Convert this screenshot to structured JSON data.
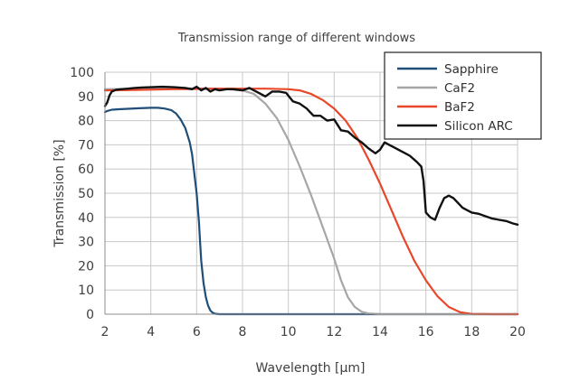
{
  "chart_data": {
    "type": "line",
    "title": "Transmission range of different windows",
    "xlabel": "Wavelength [µm]",
    "ylabel": "Transmission [%]",
    "xlim": [
      2,
      20
    ],
    "ylim": [
      0,
      100
    ],
    "xticks": [
      2,
      4,
      6,
      8,
      10,
      12,
      14,
      16,
      18,
      20
    ],
    "yticks": [
      0,
      10,
      20,
      30,
      40,
      50,
      60,
      70,
      80,
      90,
      100
    ],
    "grid": true,
    "legend_position": "top-right",
    "series": [
      {
        "name": "Sapphire",
        "color": "#1f4e79",
        "x": [
          2.0,
          2.1,
          2.3,
          2.6,
          3.0,
          3.5,
          4.0,
          4.3,
          4.6,
          4.9,
          5.1,
          5.3,
          5.5,
          5.7,
          5.8,
          5.9,
          6.0,
          6.1,
          6.15,
          6.2,
          6.3,
          6.4,
          6.5,
          6.6,
          6.7,
          6.8,
          7.0,
          7.5,
          8.0,
          10.0,
          12.0,
          14.0,
          16.0,
          18.0,
          20.0
        ],
        "y": [
          83.5,
          84.0,
          84.5,
          84.7,
          84.9,
          85.1,
          85.3,
          85.3,
          85.0,
          84.3,
          83.0,
          80.5,
          77.0,
          71.0,
          66.0,
          58.0,
          50.0,
          38.0,
          30.0,
          22.0,
          13.0,
          7.0,
          3.5,
          1.5,
          0.6,
          0.2,
          0.0,
          0.0,
          0.0,
          0.0,
          0.0,
          0.0,
          0.0,
          0.0,
          0.0
        ]
      },
      {
        "name": "CaF2",
        "color": "#a6a6a6",
        "x": [
          2.0,
          3.0,
          4.0,
          5.0,
          6.0,
          7.0,
          8.0,
          8.5,
          9.0,
          9.5,
          10.0,
          10.5,
          11.0,
          11.5,
          12.0,
          12.3,
          12.6,
          12.9,
          13.2,
          13.5,
          14.0,
          15.0,
          16.0,
          18.0,
          20.0
        ],
        "y": [
          93.0,
          93.1,
          93.2,
          93.3,
          93.3,
          93.2,
          92.5,
          91.0,
          87.0,
          81.0,
          72.0,
          61.0,
          49.0,
          36.0,
          23.0,
          14.0,
          7.0,
          3.0,
          1.0,
          0.3,
          0.0,
          0.0,
          0.0,
          0.0,
          0.0
        ]
      },
      {
        "name": "BaF2",
        "color": "#e8472a",
        "x": [
          2.0,
          3.0,
          4.0,
          5.0,
          6.0,
          7.0,
          8.0,
          9.0,
          10.0,
          10.5,
          11.0,
          11.5,
          12.0,
          12.5,
          13.0,
          13.5,
          14.0,
          14.5,
          15.0,
          15.5,
          16.0,
          16.5,
          17.0,
          17.5,
          18.0,
          19.0,
          20.0
        ],
        "y": [
          92.5,
          92.6,
          92.8,
          93.0,
          93.1,
          93.2,
          93.2,
          93.2,
          93.0,
          92.5,
          91.0,
          88.5,
          85.0,
          80.0,
          73.0,
          64.0,
          54.0,
          43.0,
          32.0,
          22.0,
          14.0,
          7.5,
          3.0,
          0.8,
          0.1,
          0.0,
          0.0
        ]
      },
      {
        "name": "Silicon ARC",
        "color": "#111111",
        "x": [
          2.0,
          2.1,
          2.2,
          2.3,
          2.5,
          2.7,
          3.0,
          3.3,
          3.6,
          4.0,
          4.5,
          5.0,
          5.5,
          5.8,
          6.0,
          6.2,
          6.4,
          6.6,
          6.8,
          7.0,
          7.3,
          7.6,
          8.0,
          8.3,
          8.6,
          9.0,
          9.3,
          9.6,
          9.9,
          10.2,
          10.5,
          10.8,
          11.1,
          11.4,
          11.7,
          12.0,
          12.3,
          12.6,
          12.9,
          13.2,
          13.5,
          13.8,
          14.0,
          14.2,
          14.4,
          14.6,
          14.8,
          15.0,
          15.3,
          15.6,
          15.8,
          15.9,
          16.0,
          16.2,
          16.4,
          16.6,
          16.8,
          17.0,
          17.2,
          17.4,
          17.6,
          17.8,
          18.0,
          18.3,
          18.6,
          18.9,
          19.2,
          19.5,
          19.8,
          20.0
        ],
        "y": [
          86.0,
          87.5,
          90.5,
          92.0,
          92.8,
          93.0,
          93.2,
          93.5,
          93.7,
          93.8,
          94.0,
          93.8,
          93.5,
          93.0,
          94.0,
          92.5,
          93.5,
          92.0,
          93.0,
          92.5,
          93.0,
          93.0,
          92.5,
          93.5,
          92.0,
          90.0,
          92.0,
          92.0,
          91.5,
          88.0,
          87.0,
          85.0,
          82.0,
          82.0,
          80.0,
          80.5,
          76.0,
          75.5,
          73.0,
          71.0,
          68.5,
          66.5,
          68.0,
          71.0,
          70.0,
          69.0,
          68.0,
          67.0,
          65.5,
          63.0,
          61.0,
          55.0,
          42.0,
          40.0,
          39.0,
          44.0,
          48.0,
          49.0,
          48.0,
          46.0,
          44.0,
          43.0,
          42.0,
          41.5,
          40.5,
          39.5,
          39.0,
          38.5,
          37.5,
          37.0
        ]
      }
    ]
  }
}
